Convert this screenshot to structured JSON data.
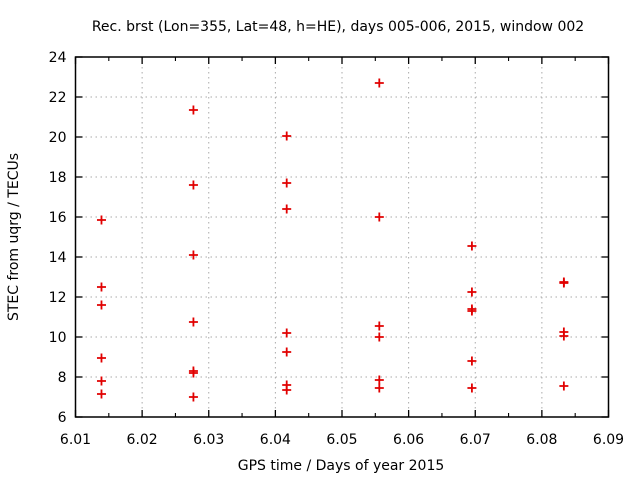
{
  "chart_data": {
    "type": "scatter",
    "title": "Rec. brst (Lon=355, Lat=48, h=HE), days 005-006, 2015, window 002",
    "xlabel": "GPS time / Days of year 2015",
    "ylabel": "STEC from uqrg / TECUs",
    "xlim": [
      6.01,
      6.09
    ],
    "ylim": [
      6,
      24
    ],
    "x_ticks": [
      6.01,
      6.02,
      6.03,
      6.04,
      6.05,
      6.06,
      6.07,
      6.08,
      6.09
    ],
    "x_tick_labels": [
      "6.01",
      "6.02",
      "6.03",
      "6.04",
      "6.05",
      "6.06",
      "6.07",
      "6.08",
      "6.09"
    ],
    "x_minor_tick_step": 0.005,
    "y_ticks": [
      6,
      8,
      10,
      12,
      14,
      16,
      18,
      20,
      22,
      24
    ],
    "y_tick_labels": [
      "6",
      "8",
      "10",
      "12",
      "14",
      "16",
      "18",
      "20",
      "22",
      "24"
    ],
    "grid": true,
    "grid_style": "dotted",
    "legend": "none",
    "marker": "plus",
    "marker_color": "#e10000",
    "grid_color": "#aaaaaa",
    "border_color": "#000000",
    "series": [
      {
        "name": "STEC",
        "points": [
          [
            6.0139,
            15.85
          ],
          [
            6.0139,
            12.5
          ],
          [
            6.0139,
            11.6
          ],
          [
            6.0139,
            8.95
          ],
          [
            6.0139,
            7.8
          ],
          [
            6.0139,
            7.15
          ],
          [
            6.0277,
            21.35
          ],
          [
            6.0277,
            17.6
          ],
          [
            6.0277,
            14.1
          ],
          [
            6.0277,
            10.75
          ],
          [
            6.0277,
            8.3
          ],
          [
            6.0277,
            8.2
          ],
          [
            6.0277,
            7.0
          ],
          [
            6.0417,
            20.05
          ],
          [
            6.0417,
            17.7
          ],
          [
            6.0417,
            16.4
          ],
          [
            6.0417,
            10.2
          ],
          [
            6.0417,
            9.25
          ],
          [
            6.0417,
            7.6
          ],
          [
            6.0417,
            7.35
          ],
          [
            6.0556,
            22.7
          ],
          [
            6.0556,
            16.0
          ],
          [
            6.0556,
            10.55
          ],
          [
            6.0556,
            10.0
          ],
          [
            6.0556,
            7.85
          ],
          [
            6.0556,
            7.45
          ],
          [
            6.0695,
            14.55
          ],
          [
            6.0695,
            12.25
          ],
          [
            6.0695,
            11.4
          ],
          [
            6.0695,
            11.3
          ],
          [
            6.0695,
            8.8
          ],
          [
            6.0695,
            7.45
          ],
          [
            6.0833,
            12.75
          ],
          [
            6.0833,
            12.7
          ],
          [
            6.0833,
            10.25
          ],
          [
            6.0833,
            10.05
          ],
          [
            6.0833,
            7.55
          ]
        ]
      }
    ]
  }
}
